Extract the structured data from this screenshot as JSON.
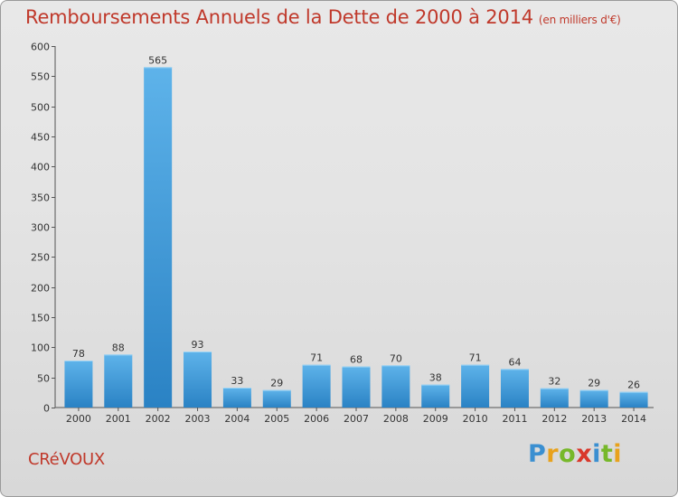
{
  "header": {
    "title": "Remboursements Annuels de la Dette de 2000 à 2014",
    "subtitle": "(en milliers d'€)"
  },
  "footer": {
    "commune": "CRéVOUX",
    "logo_letters": [
      "P",
      "r",
      "o",
      "x",
      "i",
      "t",
      "i"
    ],
    "logo_colors": [
      "#3a8fd1",
      "#e8a21c",
      "#77b82a",
      "#d9372a",
      "#3a8fd1",
      "#77b82a",
      "#e8a21c"
    ]
  },
  "colors": {
    "title": "#c0392b",
    "bar_light": "#5eb3ea",
    "bar_dark": "#2a82c4",
    "axis": "#555555"
  },
  "chart_data": {
    "type": "bar",
    "title": "Remboursements Annuels de la Dette de 2000 à 2014",
    "subtitle": "(en milliers d'€)",
    "categories": [
      "2000",
      "2001",
      "2002",
      "2003",
      "2004",
      "2005",
      "2006",
      "2007",
      "2008",
      "2009",
      "2010",
      "2011",
      "2012",
      "2013",
      "2014"
    ],
    "values": [
      78,
      88,
      565,
      93,
      33,
      29,
      71,
      68,
      70,
      38,
      71,
      64,
      32,
      29,
      26
    ],
    "ylim": [
      0,
      600
    ],
    "yticks": [
      0,
      50,
      100,
      150,
      200,
      250,
      300,
      350,
      400,
      450,
      500,
      550,
      600
    ],
    "grid": false,
    "legend": "none"
  }
}
